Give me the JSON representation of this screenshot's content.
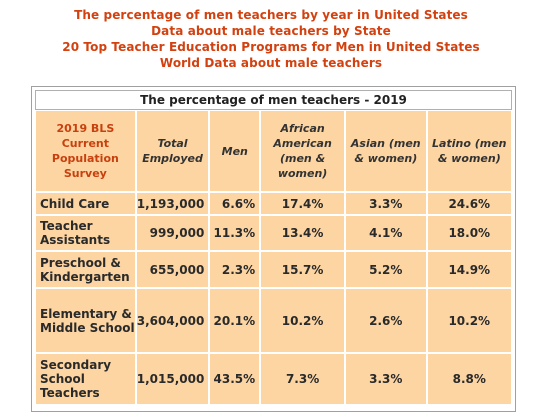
{
  "links": [
    "The percentage of men teachers by year in United States",
    "Data about male teachers by State",
    "20 Top Teacher Education Programs for Men in United States",
    "World Data about male teachers"
  ],
  "table": {
    "caption": "The percentage of men teachers - 2019",
    "headers": [
      "2019 BLS Current Population Survey",
      "Total Employed",
      "Men",
      "African American (men & women)",
      "Asian (men & women)",
      "Latino (men & women)"
    ],
    "rows": [
      [
        "Child Care",
        "1,193,000",
        "6.6%",
        "17.4%",
        "3.3%",
        "24.6%"
      ],
      [
        "Teacher Assistants",
        "999,000",
        "11.3%",
        "13.4%",
        "4.1%",
        "18.0%"
      ],
      [
        "Preschool & Kindergarten",
        "655,000",
        "2.3%",
        "15.7%",
        "5.2%",
        "14.9%"
      ],
      [
        "Elementary & Middle School",
        "3,604,000",
        "20.1%",
        "10.2%",
        "2.6%",
        "10.2%"
      ],
      [
        "Secondary School Teachers",
        "1,015,000",
        "43.5%",
        "7.3%",
        "3.3%",
        "8.8%"
      ]
    ]
  },
  "colors": {
    "link": "#d2410f",
    "cell_background": "#fcd5a3",
    "header_first": "#c8400e"
  }
}
